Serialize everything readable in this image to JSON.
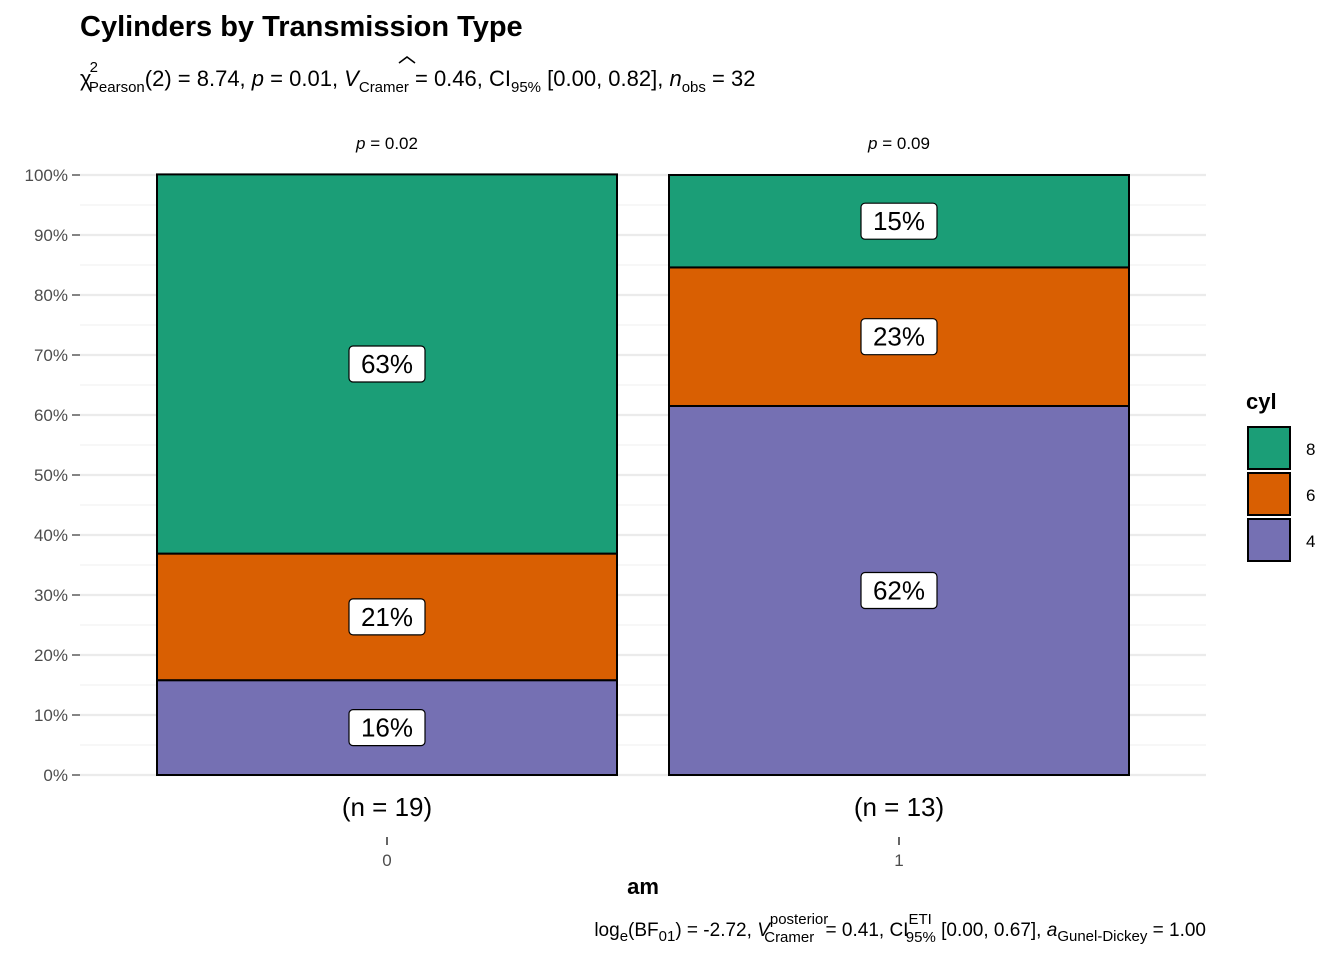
{
  "chart_data": {
    "type": "bar",
    "stacked": true,
    "title": "Cylinders by Transmission Type",
    "subtitle": {
      "chi": "χ",
      "chi_sup": "2",
      "chi_sub": "Pearson",
      "df": "(2) = 8.74, ",
      "p_sym": "p",
      "p_val": " = 0.01, ",
      "v_sym": "V",
      "v_sub": "Cramer",
      "v_val": " = 0.46, CI",
      "ci_sub": "95%",
      "ci_val": " [0.00, 0.82], ",
      "n_sym": "n",
      "n_sub": "obs",
      "n_val": " = 32"
    },
    "xlabel": "am",
    "ylabel": "",
    "categories": [
      "0",
      "1"
    ],
    "counts_labels": [
      "(n = 19)",
      "(n = 13)"
    ],
    "strip_labels": [
      {
        "sym": "p",
        "val": " = 0.02"
      },
      {
        "sym": "p",
        "val": " = 0.09"
      }
    ],
    "yticks": [
      "0%",
      "10%",
      "20%",
      "30%",
      "40%",
      "50%",
      "60%",
      "70%",
      "80%",
      "90%",
      "100%"
    ],
    "ylim": [
      0,
      100
    ],
    "series": [
      {
        "name": "4",
        "color": "#7570B3",
        "values": [
          15.8,
          61.5
        ],
        "labels": [
          "16%",
          "62%"
        ]
      },
      {
        "name": "6",
        "color": "#D95F02",
        "values": [
          21.1,
          23.1
        ],
        "labels": [
          "21%",
          "23%"
        ]
      },
      {
        "name": "8",
        "color": "#1B9E77",
        "values": [
          63.2,
          15.4
        ],
        "labels": [
          "63%",
          "15%"
        ]
      }
    ],
    "legend": {
      "title": "cyl",
      "order": [
        "8",
        "6",
        "4"
      ],
      "placement": "right"
    },
    "caption": {
      "log": "log",
      "log_sub": "e",
      "bf": "(BF",
      "bf_sub": "01",
      "bf_val": ") = -2.72, ",
      "v_sym": "V",
      "v_sup": "posterior",
      "v_sub": "Cramer",
      "v_val": " = 0.41, CI",
      "ci_sup": "ETI",
      "ci_sub": "95%",
      "ci_val": " [0.00, 0.67], ",
      "a_sym": "a",
      "a_sub": "Gunel-Dickey",
      "a_val": " = 1.00"
    },
    "grid": true
  }
}
